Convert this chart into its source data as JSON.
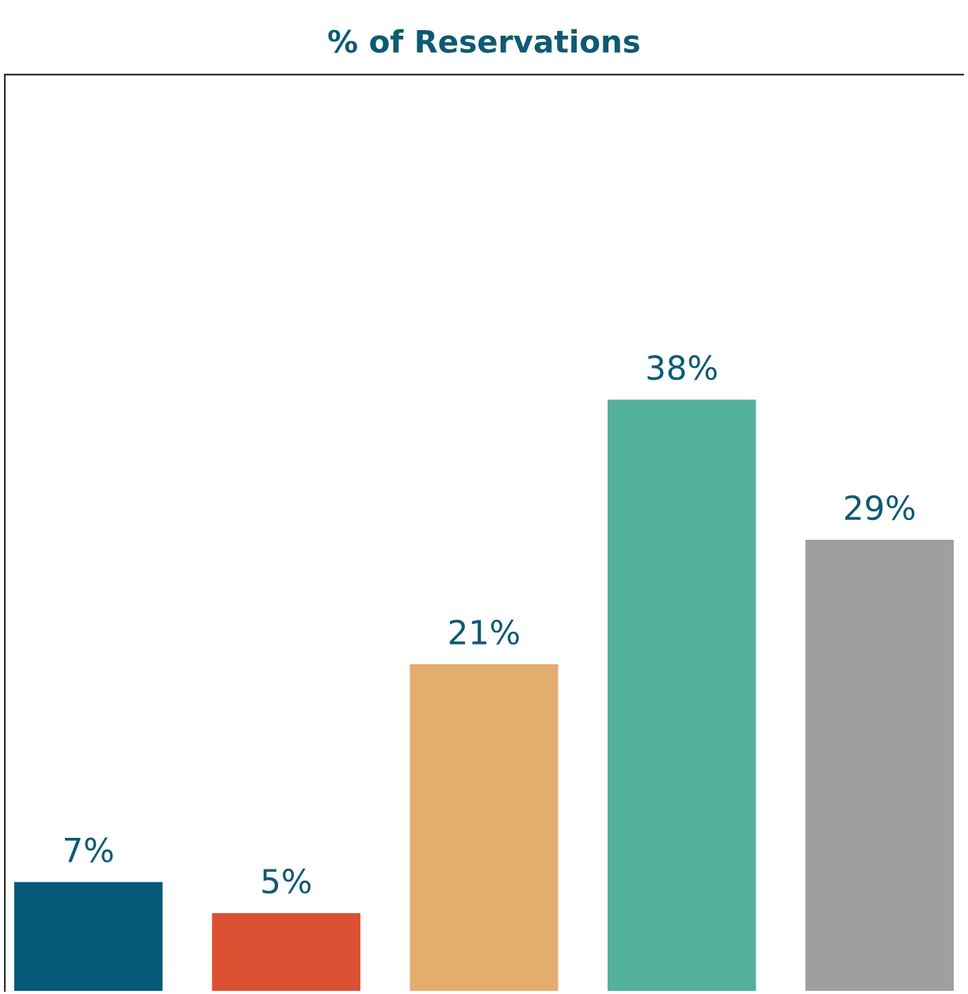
{
  "chart_data": {
    "type": "bar",
    "title": "% of Reservations",
    "categories": [
      null,
      null,
      null,
      null,
      null
    ],
    "values": [
      7,
      5,
      21,
      38,
      29
    ],
    "value_labels": [
      "7%",
      "5%",
      "21%",
      "38%",
      "29%"
    ],
    "colors": [
      "#045a78",
      "#dc5034",
      "#e3ad6e",
      "#52b09c",
      "#9d9fa1"
    ]
  }
}
